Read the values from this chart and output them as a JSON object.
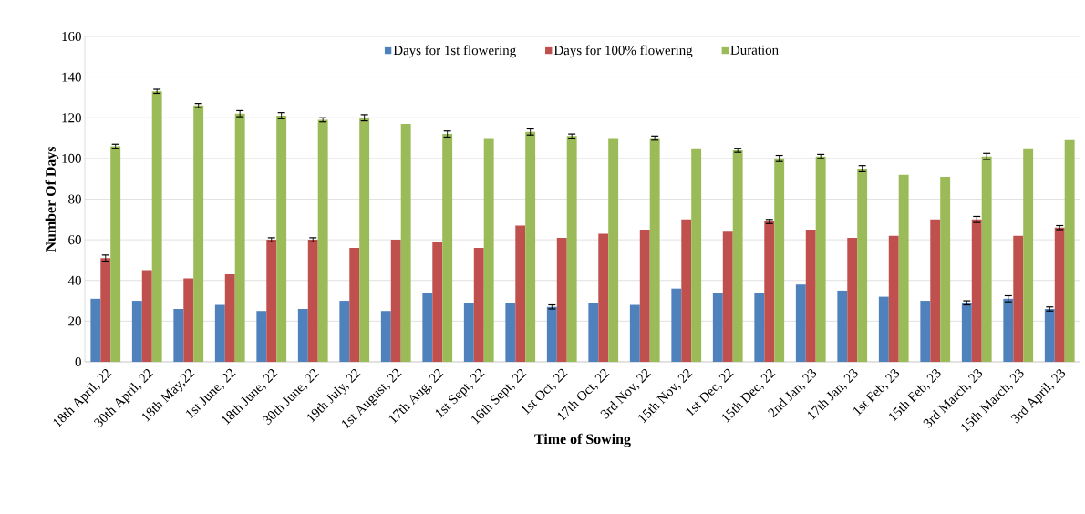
{
  "chart_data": {
    "type": "bar",
    "xlabel": "Time of Sowing",
    "ylabel": "Number  Of Days",
    "categories": [
      "18th April, 22",
      "30th April, 22",
      "18th May,22",
      "1st June, 22",
      "18th June, 22",
      "30th June, 22",
      "19th July, 22",
      "1st August, 22",
      "17th Aug, 22",
      "1st Sept, 22",
      "16th Sept, 22",
      "1st Oct, 22",
      "17th Oct, 22",
      "3rd Nov, 22",
      "15th Nov, 22",
      "1st Dec, 22",
      "15th Dec, 22",
      "2nd Jan, 23",
      "17th Jan, 23",
      "1st Feb, 23",
      "15th Feb, 23",
      "3rd March, 23",
      "15th March, 23",
      "3rd April, 23"
    ],
    "series": [
      {
        "name": "Days for 1st flowering",
        "color": "#4f81bd",
        "values": [
          31,
          30,
          26,
          28,
          25,
          26,
          30,
          25,
          34,
          29,
          29,
          27,
          29,
          28,
          36,
          34,
          34,
          38,
          35,
          32,
          30,
          29,
          31,
          26
        ],
        "errors": [
          null,
          null,
          null,
          null,
          null,
          null,
          null,
          null,
          null,
          null,
          null,
          1,
          null,
          null,
          null,
          null,
          null,
          null,
          null,
          null,
          null,
          1,
          1.5,
          1
        ]
      },
      {
        "name": "Days for 100% flowering",
        "color": "#c0504d",
        "values": [
          51,
          45,
          41,
          43,
          60,
          60,
          56,
          60,
          59,
          56,
          67,
          61,
          63,
          65,
          70,
          64,
          69,
          65,
          61,
          62,
          70,
          70,
          62,
          66
        ],
        "errors": [
          1.5,
          null,
          null,
          null,
          1,
          1,
          null,
          null,
          null,
          null,
          null,
          null,
          null,
          null,
          null,
          null,
          1,
          null,
          null,
          null,
          null,
          1.5,
          null,
          1
        ]
      },
      {
        "name": "Duration",
        "color": "#9bbb59",
        "values": [
          106,
          133,
          126,
          122,
          121,
          119,
          120,
          117,
          112,
          110,
          113,
          111,
          110,
          110,
          105,
          104,
          100,
          101,
          95,
          92,
          91,
          101,
          105,
          109
        ],
        "errors": [
          1,
          1,
          1,
          1.5,
          1.5,
          1,
          1.5,
          null,
          1.5,
          null,
          1.5,
          1,
          null,
          1,
          null,
          1,
          1.5,
          1,
          1.5,
          null,
          null,
          1.5,
          null,
          null
        ]
      }
    ],
    "ylim": [
      0,
      160
    ],
    "yticks": [
      0,
      20,
      40,
      60,
      80,
      100,
      120,
      140,
      160
    ],
    "grid": "y",
    "legend": "top"
  }
}
